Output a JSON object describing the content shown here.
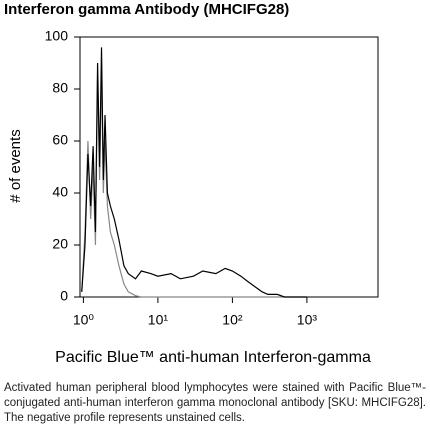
{
  "chart_data": {
    "type": "line",
    "title": "Interferon gamma Antibody (MHCIFG28)",
    "xlabel": "Pacific Blue™ anti-human Interferon-gamma",
    "ylabel": "# of events",
    "caption": "Activated human peripheral blood lymphocytes were stained with Pacific Blue™-conjugated anti-human interferon gamma monoclonal antibody [SKU: MHCIFG28]. The negative profile represents unstained cells.",
    "xscale": "log",
    "xlim": [
      0.9,
      9000
    ],
    "xticks": [
      {
        "value": 1,
        "label": "10⁰"
      },
      {
        "value": 10,
        "label": "10¹"
      },
      {
        "value": 100,
        "label": "10²"
      },
      {
        "value": 1000,
        "label": "10³"
      }
    ],
    "ylim": [
      0,
      100
    ],
    "yticks": [
      0,
      20,
      40,
      60,
      80,
      100
    ],
    "x": [
      0.95,
      1.05,
      1.15,
      1.25,
      1.35,
      1.45,
      1.55,
      1.65,
      1.75,
      1.85,
      1.95,
      2.1,
      2.3,
      2.6,
      3.0,
      3.5,
      4,
      5,
      6,
      8,
      10,
      15,
      20,
      30,
      40,
      60,
      80,
      100,
      130,
      160,
      200,
      250,
      300,
      400,
      500,
      700,
      1000
    ],
    "series": [
      {
        "color": "#000000",
        "values": [
          2,
          20,
          55,
          35,
          58,
          25,
          90,
          50,
          96,
          45,
          70,
          40,
          35,
          30,
          22,
          12,
          9,
          7,
          10,
          9,
          8,
          9,
          7,
          8,
          10,
          9,
          11,
          10,
          8,
          6,
          4,
          2,
          1,
          1,
          0,
          0,
          0
        ]
      },
      {
        "color": "#888888",
        "values": [
          2,
          25,
          60,
          30,
          50,
          20,
          85,
          45,
          90,
          40,
          60,
          35,
          25,
          20,
          12,
          5,
          2,
          0.5,
          0,
          0,
          0,
          0,
          0,
          0,
          0,
          0,
          0,
          0,
          0,
          0,
          0,
          0,
          0,
          0,
          0,
          0,
          0
        ]
      }
    ]
  }
}
